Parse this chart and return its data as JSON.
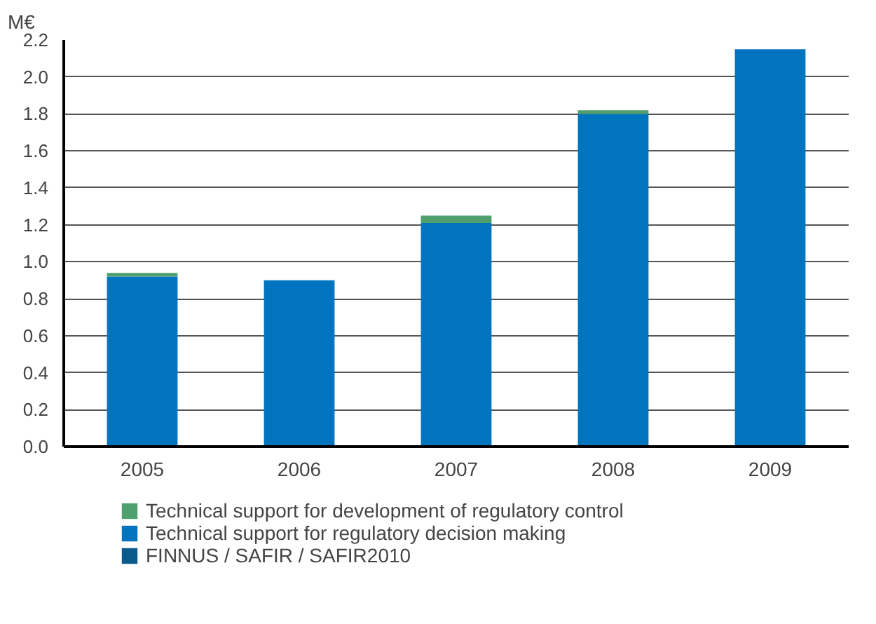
{
  "chart_data": {
    "type": "bar",
    "stacked": true,
    "ylabel": "M€",
    "categories": [
      "2005",
      "2006",
      "2007",
      "2008",
      "2009"
    ],
    "series": [
      {
        "name": "FINNUS / SAFIR / SAFIR2010",
        "color": "#0b5a8c",
        "values": [
          0,
          0,
          0,
          0,
          0
        ]
      },
      {
        "name": "Technical support for regulatory decision making",
        "color": "#0074bf",
        "values": [
          0.92,
          0.9,
          1.21,
          1.8,
          2.15
        ]
      },
      {
        "name": "Technical support for development of regulatory control",
        "color": "#4fa06e",
        "values": [
          0.02,
          0,
          0.04,
          0.02,
          0
        ]
      }
    ],
    "ylim": [
      0,
      2.2
    ],
    "yticks": [
      {
        "value": 0,
        "label": "0.0"
      },
      {
        "value": 0.2,
        "label": "0.2"
      },
      {
        "value": 0.4,
        "label": "0.4"
      },
      {
        "value": 0.6,
        "label": "0.6"
      },
      {
        "value": 0.8,
        "label": "0.8"
      },
      {
        "value": 1,
        "label": "1.0"
      },
      {
        "value": 1.2,
        "label": "1.2"
      },
      {
        "value": 1.4,
        "label": "1.4"
      },
      {
        "value": 1.6,
        "label": "1.6"
      },
      {
        "value": 1.8,
        "label": "1.8"
      },
      {
        "value": 2,
        "label": "2.0"
      },
      {
        "value": 2.2,
        "label": "2.2"
      }
    ],
    "grid": "y",
    "legend": "bottom"
  }
}
